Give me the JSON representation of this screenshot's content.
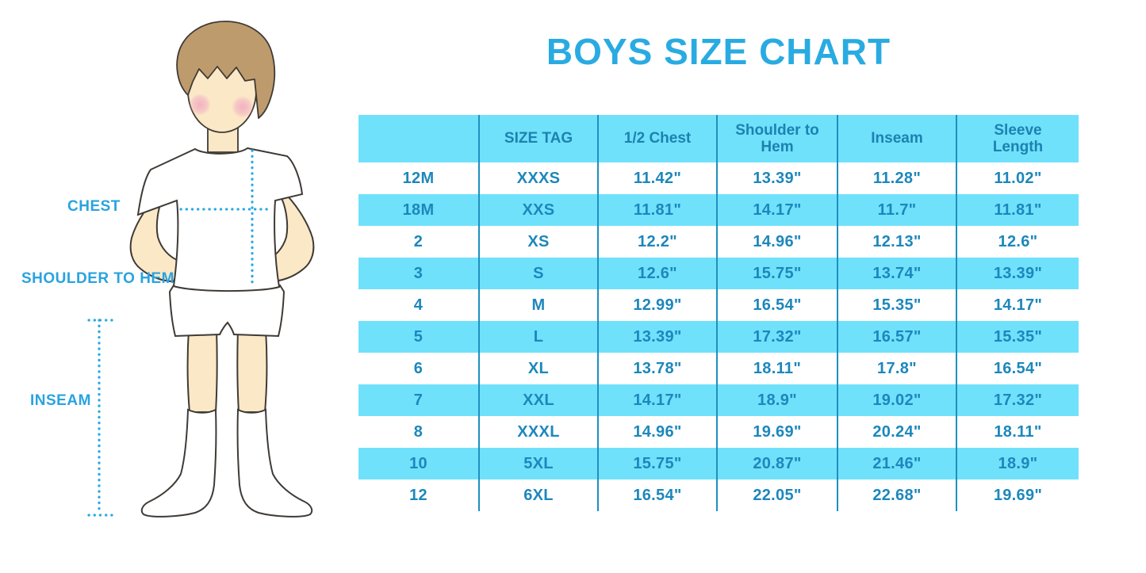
{
  "title": "BOYS SIZE CHART",
  "colors": {
    "title_blue": "#29ABE2",
    "label_blue": "#29A3E0",
    "row_fill_blue": "#70E1FB",
    "grid_line_blue": "#1E90BE",
    "table_text_blue": "#1D87BC",
    "dotted_line_blue": "#29A9E1",
    "hair_brown": "#BE9B6C",
    "skin_tone": "#FBE8C6",
    "blush_pink": "#F2AFC2"
  },
  "figure": {
    "labels": {
      "chest": "CHEST",
      "shoulder_to_hem": "SHOULDER TO HEM",
      "inseam": "INSEAM"
    }
  },
  "chart_data": {
    "type": "table",
    "title": "BOYS SIZE CHART",
    "headers": [
      "",
      "SIZE TAG",
      "1/2 Chest",
      "Shoulder to Hem",
      "Inseam",
      "Sleeve Length"
    ],
    "rows": [
      [
        "12M",
        "XXXS",
        "11.42\"",
        "13.39\"",
        "11.28\"",
        "11.02\""
      ],
      [
        "18M",
        "XXS",
        "11.81\"",
        "14.17\"",
        "11.7\"",
        "11.81\""
      ],
      [
        "2",
        "XS",
        "12.2\"",
        "14.96\"",
        "12.13\"",
        "12.6\""
      ],
      [
        "3",
        "S",
        "12.6\"",
        "15.75\"",
        "13.74\"",
        "13.39\""
      ],
      [
        "4",
        "M",
        "12.99\"",
        "16.54\"",
        "15.35\"",
        "14.17\""
      ],
      [
        "5",
        "L",
        "13.39\"",
        "17.32\"",
        "16.57\"",
        "15.35\""
      ],
      [
        "6",
        "XL",
        "13.78\"",
        "18.11\"",
        "17.8\"",
        "16.54\""
      ],
      [
        "7",
        "XXL",
        "14.17\"",
        "18.9\"",
        "19.02\"",
        "17.32\""
      ],
      [
        "8",
        "XXXL",
        "14.96\"",
        "19.69\"",
        "20.24\"",
        "18.11\""
      ],
      [
        "10",
        "5XL",
        "15.75\"",
        "20.87\"",
        "21.46\"",
        "18.9\""
      ],
      [
        "12",
        "6XL",
        "16.54\"",
        "22.05\"",
        "22.68\"",
        "19.69\""
      ]
    ],
    "row_striping": "alternating white / light blue, blue on 2nd, 4th, 6th, 8th, 10th data rows",
    "legend_position": "none",
    "grid": "vertical column separators only"
  }
}
